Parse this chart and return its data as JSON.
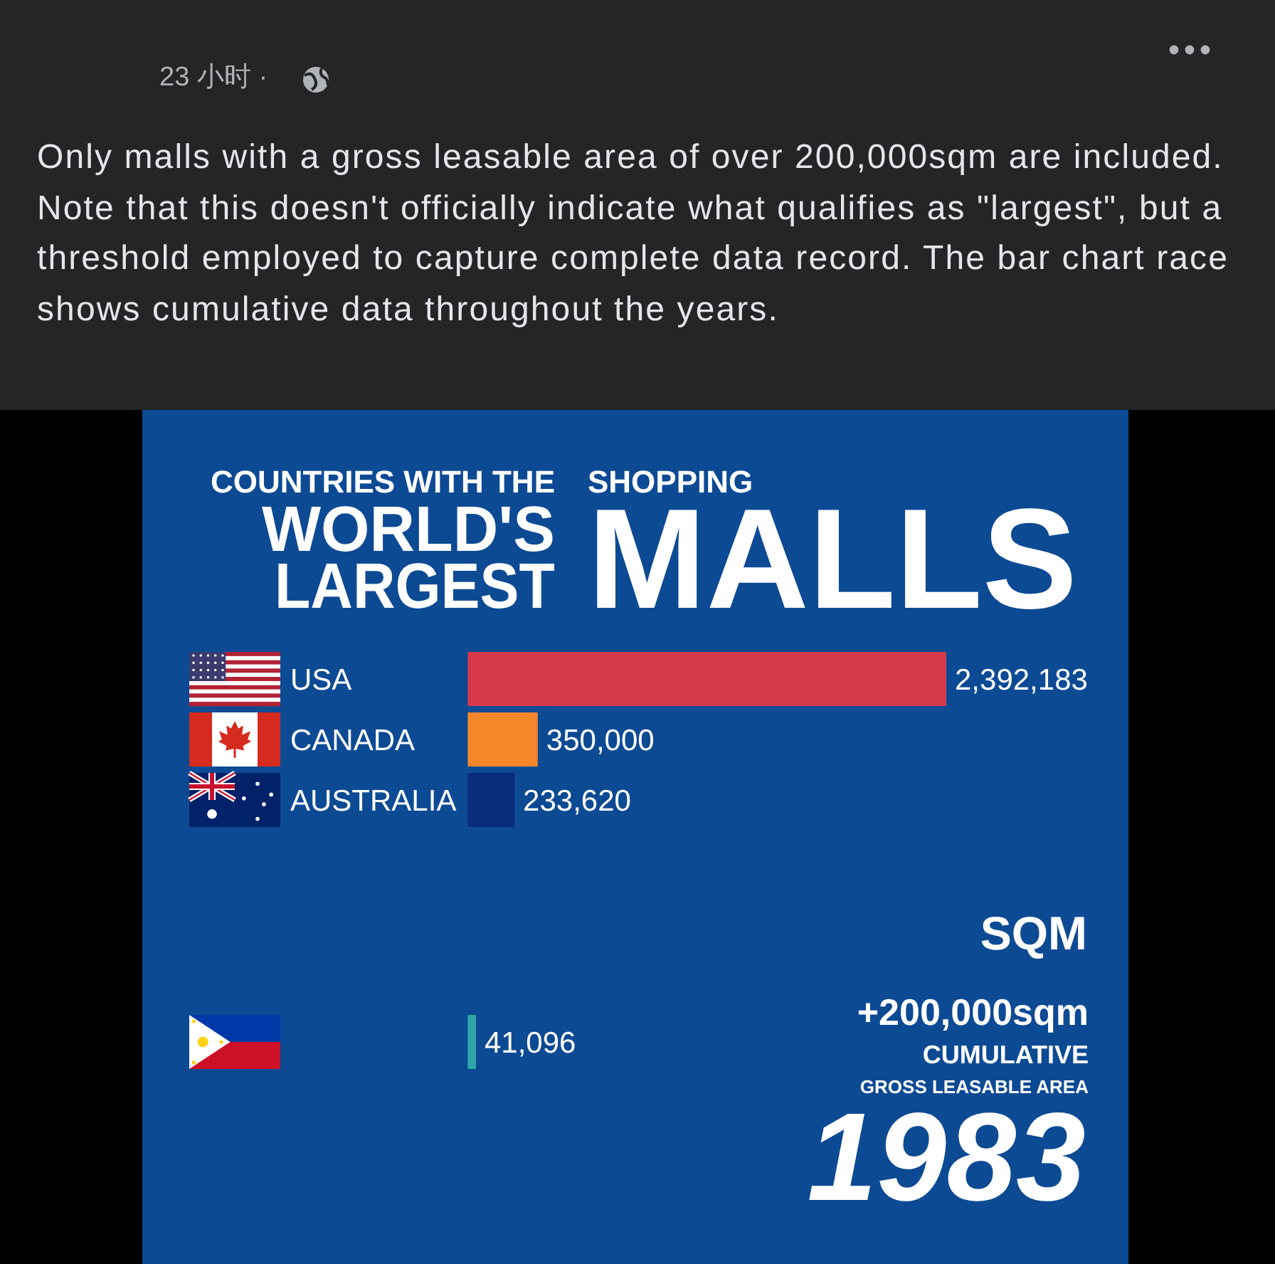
{
  "chart_data": {
    "type": "bar",
    "orientation": "horizontal",
    "title": "COUNTRIES WITH THE WORLD'S LARGEST SHOPPING MALLS",
    "subtitle": "+200,000sqm",
    "xlabel": "SQM",
    "categories": [
      "USA",
      "CANADA",
      "AUSTRALIA",
      null,
      null,
      null,
      null
    ],
    "values": [
      2392183,
      350000,
      233620,
      null,
      null,
      null,
      41096
    ],
    "value_labels": [
      "2,392,183",
      "350,000",
      "233,620",
      null,
      null,
      null,
      "41,096"
    ],
    "colors": [
      "#d63a4a",
      "#f5862a",
      "#0a2c7a",
      null,
      null,
      null,
      "#2ea6a8"
    ],
    "annotations": [
      "CUMULATIVE",
      "GROSS LEASABLE AREA",
      "1983",
      "Only malls with a gross leasable area of over 200,000sqm are included. Note that this doesn't officially indicate what qualifies as \"largest\", but a threshold employed to capture complete data record. The bar chart race shows cumulative data throughout the years.",
      "23 小时 ·"
    ]
  }
}
